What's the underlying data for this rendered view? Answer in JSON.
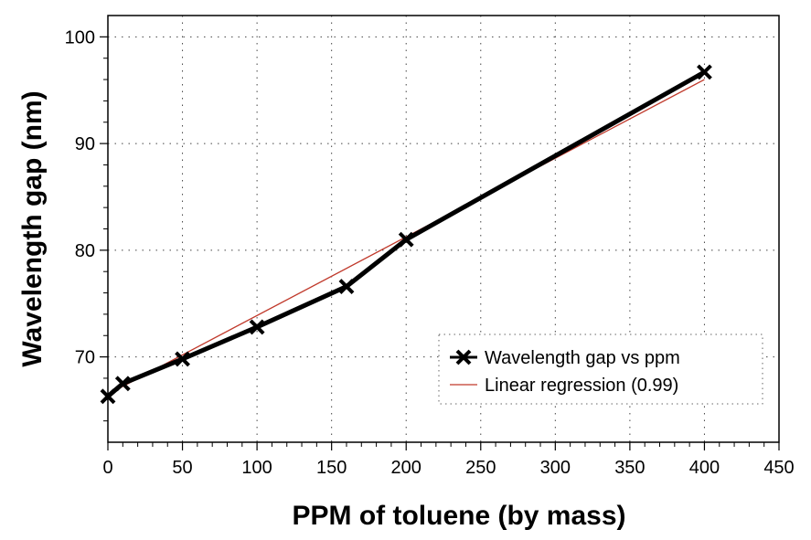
{
  "chart_data": {
    "type": "line",
    "xlabel": "PPM of toluene (by mass)",
    "ylabel": "Wavelength gap (nm)",
    "xlim": [
      0,
      450
    ],
    "ylim": [
      62,
      102
    ],
    "x_ticks": [
      0,
      50,
      100,
      150,
      200,
      250,
      300,
      350,
      400,
      450
    ],
    "y_ticks": [
      70,
      80,
      90,
      100
    ],
    "grid": true,
    "legend_position": "bottom-right",
    "series": [
      {
        "name": "Wavelength gap vs ppm",
        "color": "#000000",
        "marker": "x",
        "x": [
          0,
          10,
          50,
          100,
          160,
          200,
          400
        ],
        "y": [
          66.3,
          67.5,
          69.8,
          72.8,
          76.6,
          81.0,
          96.7
        ]
      },
      {
        "name": "Linear regression (0.99)",
        "color": "#c0392b",
        "marker": "none",
        "x": [
          0,
          400
        ],
        "y": [
          66.5,
          96.0
        ]
      }
    ]
  }
}
